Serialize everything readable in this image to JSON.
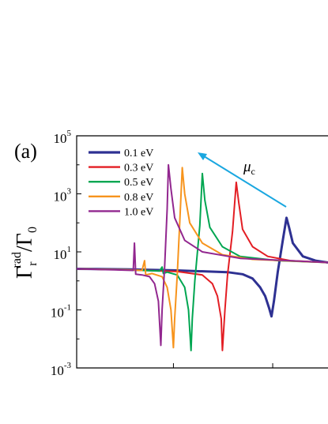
{
  "chart_data": {
    "type": "line",
    "panel_label": "(a)",
    "ylabel": {
      "base": "Γ",
      "sup": "rad",
      "sub": "r",
      "suffix": "/Γ",
      "suffix_sub": "0"
    },
    "yscale": "log",
    "ylim": [
      0.001,
      100000
    ],
    "xlim": [
      0,
      1
    ],
    "yticks": [
      {
        "base": "10",
        "exp": "5",
        "value": 100000
      },
      {
        "base": "10",
        "exp": "3",
        "value": 1000
      },
      {
        "base": "10",
        "exp": "1",
        "value": 10
      },
      {
        "base": "10",
        "exp": "-1",
        "value": 0.1
      },
      {
        "base": "10",
        "exp": "-3",
        "value": 0.001
      }
    ],
    "grid": false,
    "legend_position": "top-left",
    "annotation": {
      "symbol": "μ",
      "sub": "c",
      "arrow_color": "#1aa7e0"
    },
    "series": [
      {
        "name": "0.1 eV",
        "color": "#2e3192",
        "points": [
          [
            0,
            2.6
          ],
          [
            0.2,
            2.5
          ],
          [
            0.4,
            2.3
          ],
          [
            0.6,
            2.0
          ],
          [
            0.66,
            1.7
          ],
          [
            0.7,
            1.2
          ],
          [
            0.73,
            0.6
          ],
          [
            0.75,
            0.3
          ],
          [
            0.765,
            0.12
          ],
          [
            0.775,
            0.06
          ],
          [
            0.785,
            0.2
          ],
          [
            0.8,
            2.0
          ],
          [
            0.82,
            25
          ],
          [
            0.835,
            150
          ],
          [
            0.845,
            70
          ],
          [
            0.86,
            20
          ],
          [
            0.9,
            7
          ],
          [
            0.95,
            5
          ],
          [
            1,
            4.3
          ]
        ]
      },
      {
        "name": "0.3 eV",
        "color": "#e31e24",
        "points": [
          [
            0,
            2.6
          ],
          [
            0.2,
            2.4
          ],
          [
            0.4,
            2.1
          ],
          [
            0.5,
            1.6
          ],
          [
            0.54,
            0.8
          ],
          [
            0.56,
            0.3
          ],
          [
            0.575,
            0.05
          ],
          [
            0.58,
            0.004
          ],
          [
            0.59,
            0.1
          ],
          [
            0.6,
            1.5
          ],
          [
            0.62,
            50
          ],
          [
            0.635,
            2500
          ],
          [
            0.645,
            500
          ],
          [
            0.66,
            60
          ],
          [
            0.7,
            15
          ],
          [
            0.76,
            7
          ],
          [
            0.85,
            5
          ],
          [
            1,
            4.3
          ]
        ]
      },
      {
        "name": "0.5 eV",
        "color": "#00a651",
        "points": [
          [
            0,
            2.6
          ],
          [
            0.2,
            2.4
          ],
          [
            0.33,
            2.2
          ],
          [
            0.34,
            3.0
          ],
          [
            0.345,
            1.8
          ],
          [
            0.36,
            2.0
          ],
          [
            0.4,
            1.6
          ],
          [
            0.43,
            0.6
          ],
          [
            0.445,
            0.1
          ],
          [
            0.455,
            0.004
          ],
          [
            0.46,
            0.05
          ],
          [
            0.47,
            1.0
          ],
          [
            0.49,
            80
          ],
          [
            0.5,
            5000
          ],
          [
            0.51,
            600
          ],
          [
            0.53,
            70
          ],
          [
            0.58,
            15
          ],
          [
            0.65,
            7
          ],
          [
            0.8,
            5
          ],
          [
            1,
            4.3
          ]
        ]
      },
      {
        "name": "0.8 eV",
        "color": "#f7941d",
        "points": [
          [
            0,
            2.6
          ],
          [
            0.2,
            2.4
          ],
          [
            0.26,
            2.3
          ],
          [
            0.27,
            5.0
          ],
          [
            0.275,
            1.6
          ],
          [
            0.3,
            1.8
          ],
          [
            0.34,
            1.4
          ],
          [
            0.36,
            0.6
          ],
          [
            0.375,
            0.1
          ],
          [
            0.385,
            0.005
          ],
          [
            0.39,
            0.05
          ],
          [
            0.4,
            1.5
          ],
          [
            0.41,
            100
          ],
          [
            0.42,
            8000
          ],
          [
            0.43,
            1000
          ],
          [
            0.45,
            100
          ],
          [
            0.5,
            20
          ],
          [
            0.58,
            8
          ],
          [
            0.7,
            5.5
          ],
          [
            1,
            4.3
          ]
        ]
      },
      {
        "name": "1.0 eV",
        "color": "#92278f",
        "points": [
          [
            0,
            2.6
          ],
          [
            0.15,
            2.4
          ],
          [
            0.225,
            2.3
          ],
          [
            0.23,
            20
          ],
          [
            0.235,
            1.7
          ],
          [
            0.26,
            1.6
          ],
          [
            0.29,
            1.4
          ],
          [
            0.31,
            0.8
          ],
          [
            0.325,
            0.2
          ],
          [
            0.335,
            0.006
          ],
          [
            0.34,
            0.1
          ],
          [
            0.35,
            3.0
          ],
          [
            0.36,
            300
          ],
          [
            0.365,
            10000
          ],
          [
            0.375,
            1500
          ],
          [
            0.39,
            150
          ],
          [
            0.43,
            25
          ],
          [
            0.5,
            10
          ],
          [
            0.65,
            6
          ],
          [
            1,
            4.3
          ]
        ]
      }
    ]
  }
}
